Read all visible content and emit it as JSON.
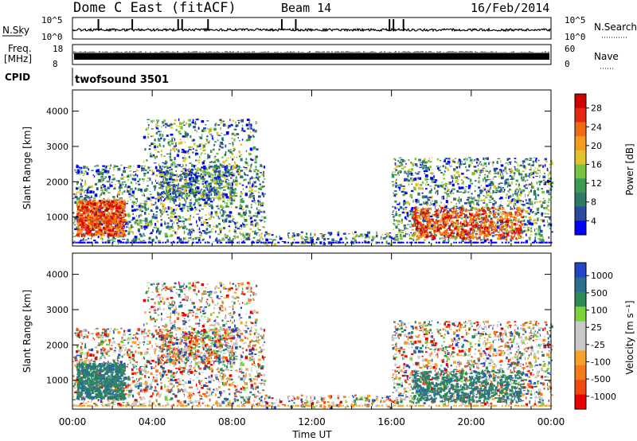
{
  "header": {
    "station": "Dome C East (fitACF)",
    "beam": "Beam 14",
    "date": "16/Feb/2014"
  },
  "panels": {
    "nsky": {
      "label": "N.Sky",
      "ticks_left": [
        "10^5",
        "10^0"
      ],
      "ticks_right": [
        "10^5",
        "10^0"
      ],
      "right_label": "N.Search"
    },
    "freq": {
      "label": "Freq.",
      "unit": "[MHz]",
      "ticks_left": [
        "18",
        "8"
      ],
      "ticks_right": [
        "60",
        "0"
      ],
      "right_label": "Nave"
    },
    "cpid": {
      "label": "CPID",
      "value": "twofsound 3501"
    }
  },
  "colors": {
    "power": [
      "#0000ff",
      "#2a4aa0",
      "#2f7a66",
      "#3d9a55",
      "#7bc243",
      "#e2c22f",
      "#f39c1f",
      "#f06a14",
      "#e32a10",
      "#d00000"
    ],
    "velocity": [
      "#e80000",
      "#f04a10",
      "#f47a1a",
      "#f6a228",
      "#c9c9c9",
      "#c9c9c9",
      "#7bd23a",
      "#2e8b57",
      "#2b6f8e",
      "#2346c8"
    ]
  },
  "chart_data": [
    {
      "type": "heatmap",
      "name": "power",
      "ylabel": "Slant Range [km]",
      "ylim": [
        180,
        4600
      ],
      "yticks": [
        "1000",
        "2000",
        "3000",
        "4000"
      ],
      "xlim": [
        0,
        24
      ],
      "colorbar": {
        "label": "Power [dB]",
        "ticks": [
          "28",
          "24",
          "20",
          "16",
          "12",
          "8",
          "4"
        ]
      }
    },
    {
      "type": "heatmap",
      "name": "velocity",
      "ylabel": "Slant Range [km]",
      "ylim": [
        180,
        4600
      ],
      "yticks": [
        "1000",
        "2000",
        "3000",
        "4000"
      ],
      "xlim": [
        0,
        24
      ],
      "xlabel": "Time UT",
      "xticks": [
        "00:00",
        "04:00",
        "08:00",
        "12:00",
        "16:00",
        "20:00",
        "00:00"
      ],
      "colorbar": {
        "label": "Velocity [m s⁻¹]",
        "ticks": [
          "1000",
          "500",
          "100",
          "25",
          "-25",
          "-100",
          "-500",
          "-1000"
        ]
      }
    }
  ]
}
